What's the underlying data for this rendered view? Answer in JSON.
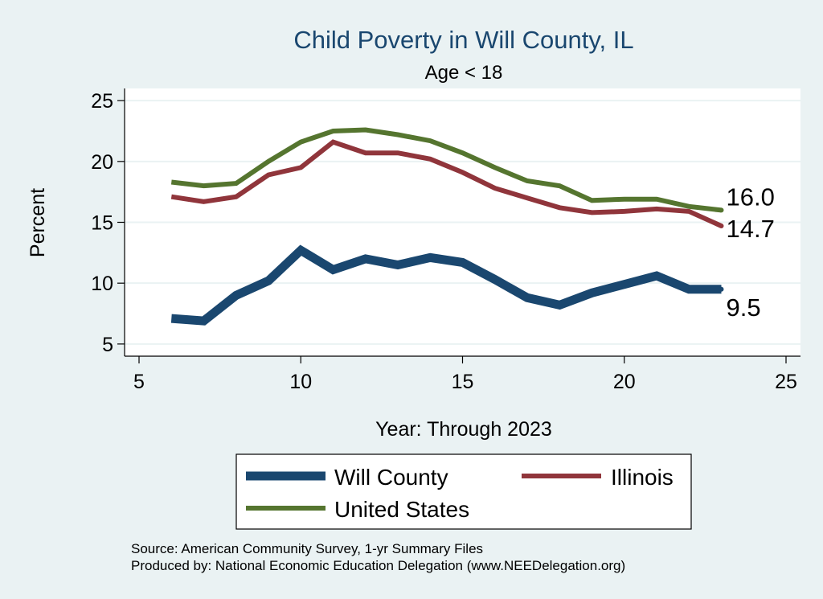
{
  "chart_data": {
    "type": "line",
    "title": "Child Poverty in Will County, IL",
    "subtitle": "Age < 18",
    "xlabel": "Year: Through 2023",
    "ylabel": "Percent",
    "xlim": [
      5,
      25
    ],
    "ylim": [
      4,
      26
    ],
    "xticks": [
      5,
      10,
      15,
      20,
      25
    ],
    "yticks": [
      5,
      10,
      15,
      20,
      25
    ],
    "grid": true,
    "legend_position": "bottom",
    "series": [
      {
        "name": "Will County",
        "color": "#1a476f",
        "x": [
          6,
          7,
          8,
          9,
          10,
          11,
          12,
          13,
          14,
          15,
          16,
          17,
          18,
          19,
          20,
          21,
          22,
          23
        ],
        "y": [
          7.1,
          6.9,
          9.0,
          10.2,
          12.7,
          11.1,
          12.0,
          11.5,
          12.1,
          11.7,
          10.3,
          8.8,
          8.2,
          9.2,
          9.9,
          10.6,
          9.5,
          9.5
        ],
        "end_label": "9.5"
      },
      {
        "name": "Illinois",
        "color": "#90353b",
        "x": [
          6,
          7,
          8,
          9,
          10,
          11,
          12,
          13,
          14,
          15,
          16,
          17,
          18,
          19,
          20,
          21,
          22,
          23
        ],
        "y": [
          17.1,
          16.7,
          17.1,
          18.9,
          19.5,
          21.6,
          20.7,
          20.7,
          20.2,
          19.1,
          17.8,
          17.0,
          16.2,
          15.8,
          15.9,
          16.1,
          15.9,
          14.7
        ],
        "end_label": "14.7"
      },
      {
        "name": "United States",
        "color": "#55752f",
        "x": [
          6,
          7,
          8,
          9,
          10,
          11,
          12,
          13,
          14,
          15,
          16,
          17,
          18,
          19,
          20,
          21,
          22,
          23
        ],
        "y": [
          18.3,
          18.0,
          18.2,
          20.0,
          21.6,
          22.5,
          22.6,
          22.2,
          21.7,
          20.7,
          19.5,
          18.4,
          18.0,
          16.8,
          16.9,
          16.9,
          16.3,
          16.0
        ],
        "end_label": "16.0"
      }
    ],
    "notes": [
      "Source: American Community Survey, 1-yr Summary Files",
      "Produced by: National Economic Education Delegation (www.NEEDelegation.org)"
    ]
  }
}
